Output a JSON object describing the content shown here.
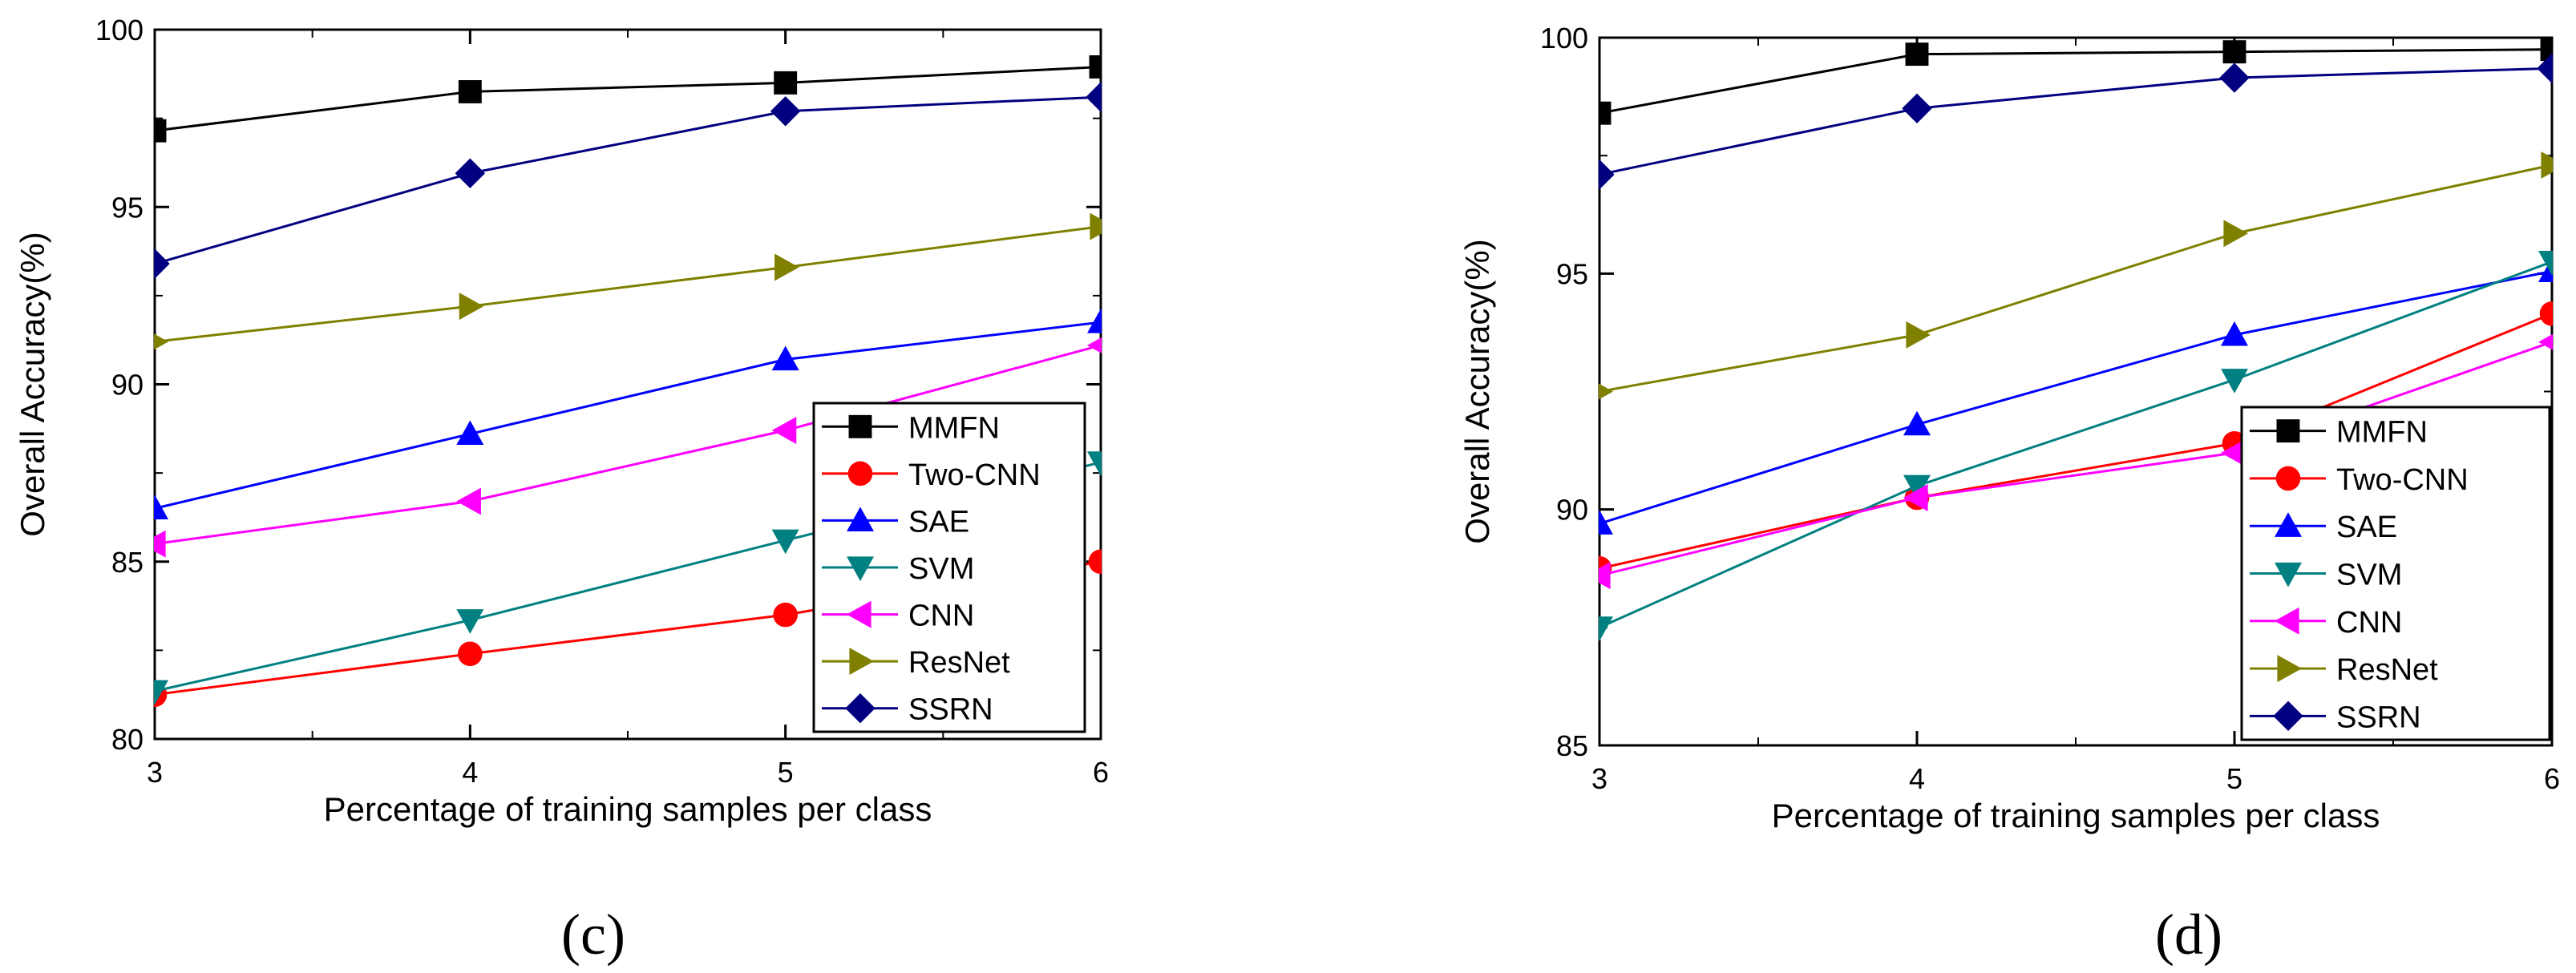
{
  "chart_data": [
    {
      "type": "line",
      "caption": "(c)",
      "xlabel": "Percentage of training samples per class",
      "ylabel": "Overall Accuracy(%)",
      "x": [
        3,
        4,
        5,
        6
      ],
      "xticks": [
        "3",
        "4",
        "5",
        "6"
      ],
      "ylim": [
        80,
        100
      ],
      "yticks": [
        "80",
        "85",
        "90",
        "95",
        "100"
      ],
      "legend_position": "bottom-right",
      "grid": false,
      "series": [
        {
          "name": "MMFN",
          "color": "#000000",
          "marker": "square",
          "values": [
            97.15,
            98.25,
            98.5,
            98.95
          ]
        },
        {
          "name": "Two-CNN",
          "color": "#ff0000",
          "marker": "circle",
          "values": [
            81.25,
            82.4,
            83.5,
            85.0
          ]
        },
        {
          "name": "SAE",
          "color": "#0000ff",
          "marker": "triangle-up",
          "values": [
            86.5,
            88.6,
            90.7,
            91.75
          ]
        },
        {
          "name": "SVM",
          "color": "#008080",
          "marker": "triangle-down",
          "values": [
            81.35,
            83.35,
            85.6,
            87.8
          ]
        },
        {
          "name": "CNN",
          "color": "#ff00ff",
          "marker": "triangle-left",
          "values": [
            85.5,
            86.7,
            88.7,
            91.1
          ]
        },
        {
          "name": "ResNet",
          "color": "#808000",
          "marker": "triangle-right",
          "values": [
            91.2,
            92.2,
            93.3,
            94.45
          ]
        },
        {
          "name": "SSRN",
          "color": "#000080",
          "marker": "diamond",
          "values": [
            93.4,
            95.95,
            97.7,
            98.1
          ]
        }
      ]
    },
    {
      "type": "line",
      "caption": "(d)",
      "xlabel": "Percentage of training samples per class",
      "ylabel": "Overall Accuracy(%)",
      "x": [
        3,
        4,
        5,
        6
      ],
      "xticks": [
        "3",
        "4",
        "5",
        "6"
      ],
      "ylim": [
        85,
        100
      ],
      "yticks": [
        "85",
        "90",
        "95",
        "100"
      ],
      "legend_position": "bottom-right",
      "grid": false,
      "series": [
        {
          "name": "MMFN",
          "color": "#000000",
          "marker": "square",
          "values": [
            98.4,
            99.65,
            99.7,
            99.75
          ]
        },
        {
          "name": "Two-CNN",
          "color": "#ff0000",
          "marker": "circle",
          "values": [
            88.75,
            90.25,
            91.4,
            94.15
          ]
        },
        {
          "name": "SAE",
          "color": "#0000ff",
          "marker": "triangle-up",
          "values": [
            89.7,
            91.8,
            93.7,
            95.05
          ]
        },
        {
          "name": "SVM",
          "color": "#008080",
          "marker": "triangle-down",
          "values": [
            87.5,
            90.5,
            92.75,
            95.25
          ]
        },
        {
          "name": "CNN",
          "color": "#ff00ff",
          "marker": "triangle-left",
          "values": [
            88.6,
            90.25,
            91.2,
            93.55
          ]
        },
        {
          "name": "ResNet",
          "color": "#808000",
          "marker": "triangle-right",
          "values": [
            92.5,
            93.7,
            95.85,
            97.3
          ]
        },
        {
          "name": "SSRN",
          "color": "#000080",
          "marker": "diamond",
          "values": [
            97.1,
            98.5,
            99.15,
            99.35
          ]
        }
      ]
    }
  ]
}
